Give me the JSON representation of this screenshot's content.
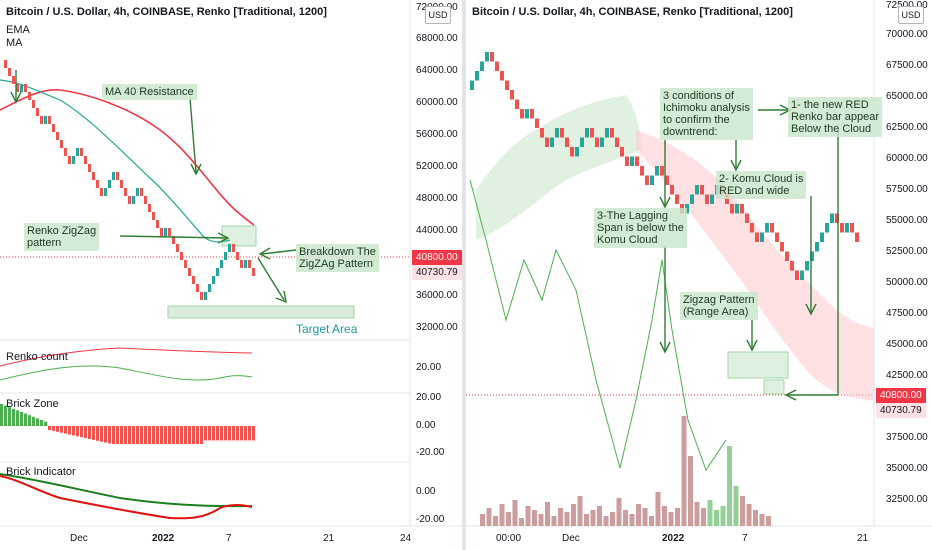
{
  "left": {
    "title": "Bitcoin / U.S. Dollar, 4h, COINBASE, Renko [Traditional, 1200]",
    "legend": {
      "ema": "EMA",
      "ma": "MA"
    },
    "currency": "USD",
    "price_axis": [
      "72000.00",
      "68000.00",
      "64000.00",
      "60000.00",
      "56000.00",
      "52000.00",
      "48000.00",
      "44000.00",
      "36000.00",
      "32000.00"
    ],
    "last_price": "40800.00",
    "prev_price": "40730.79",
    "annotations": {
      "ma_resistance": "MA 40 Resistance",
      "zigzag": "Renko ZigZag\npattern",
      "breakdown": "Breakdown The\nZigZAg Pattern",
      "target": "Target Area"
    },
    "panes": {
      "renko_count": {
        "label": "Renko count",
        "axis": [
          "20.00"
        ]
      },
      "brick_zone": {
        "label": "Brick Zone",
        "axis": [
          "20.00",
          "0.00",
          "-20.00"
        ]
      },
      "brick_indicator": {
        "label": "Brick Indicator",
        "axis": [
          "20.00",
          "0.00",
          "-20.00"
        ]
      }
    },
    "time_axis": [
      "Dec",
      "2022",
      "7",
      "21",
      "24"
    ],
    "colors": {
      "up": "#26a69a",
      "down": "#ef5350",
      "ma": "#f23645",
      "ema": "#26a69a",
      "note": "#c8e6c9"
    }
  },
  "right": {
    "title": "Bitcoin / U.S. Dollar, 4h, COINBASE, Renko [Traditional, 1200]",
    "currency": "USD",
    "price_axis": [
      "72500.00",
      "70000.00",
      "67500.00",
      "65000.00",
      "62500.00",
      "60000.00",
      "57500.00",
      "55000.00",
      "52500.00",
      "50000.00",
      "47500.00",
      "45000.00",
      "42500.00",
      "37500.00",
      "35000.00",
      "32500.00"
    ],
    "last_price": "40800.00",
    "prev_price": "40730.79",
    "annotations": {
      "conditions": "3 conditions of\nIchimoku analysis\nto confirm the\ndowntrend:",
      "red_bar": "1- the new RED\nRenko bar appear\nBelow the Cloud",
      "komu": "2- Komu Cloud is\nRED and wide",
      "lagging": "3-The Lagging\nSpan is below the\nKomu Cloud",
      "zigzag": "Zigzag Pattern\n(Range Area)"
    },
    "time_axis": [
      "00:00",
      "Dec",
      "2022",
      "7",
      "21"
    ]
  }
}
